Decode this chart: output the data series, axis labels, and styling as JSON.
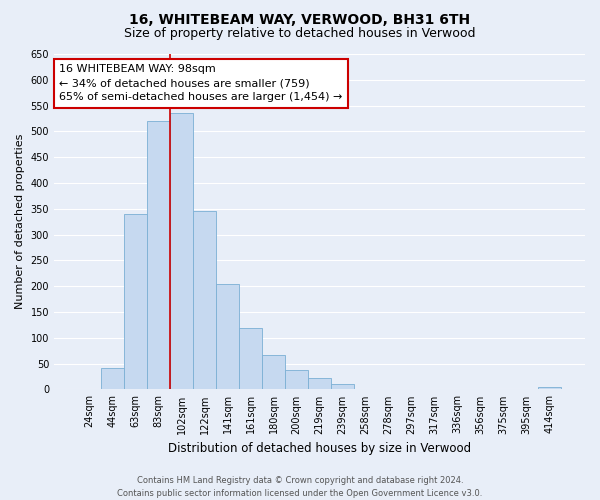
{
  "title": "16, WHITEBEAM WAY, VERWOOD, BH31 6TH",
  "subtitle": "Size of property relative to detached houses in Verwood",
  "xlabel": "Distribution of detached houses by size in Verwood",
  "ylabel": "Number of detached properties",
  "bar_labels": [
    "24sqm",
    "44sqm",
    "63sqm",
    "83sqm",
    "102sqm",
    "122sqm",
    "141sqm",
    "161sqm",
    "180sqm",
    "200sqm",
    "219sqm",
    "239sqm",
    "258sqm",
    "278sqm",
    "297sqm",
    "317sqm",
    "336sqm",
    "356sqm",
    "375sqm",
    "395sqm",
    "414sqm"
  ],
  "bar_values": [
    0,
    42,
    340,
    520,
    535,
    345,
    205,
    120,
    67,
    38,
    22,
    10,
    0,
    0,
    0,
    0,
    0,
    0,
    0,
    0,
    4
  ],
  "bar_color": "#c6d9f0",
  "bar_edge_color": "#7bafd4",
  "vline_x_index": 4,
  "vline_color": "#cc0000",
  "ylim": [
    0,
    650
  ],
  "yticks": [
    0,
    50,
    100,
    150,
    200,
    250,
    300,
    350,
    400,
    450,
    500,
    550,
    600,
    650
  ],
  "annotation_text": "16 WHITEBEAM WAY: 98sqm\n← 34% of detached houses are smaller (759)\n65% of semi-detached houses are larger (1,454) →",
  "annotation_box_facecolor": "#ffffff",
  "annotation_box_edgecolor": "#cc0000",
  "footer1": "Contains HM Land Registry data © Crown copyright and database right 2024.",
  "footer2": "Contains public sector information licensed under the Open Government Licence v3.0.",
  "bg_color": "#e8eef8",
  "grid_color": "#ffffff",
  "title_fontsize": 10,
  "subtitle_fontsize": 9,
  "ylabel_fontsize": 8,
  "xlabel_fontsize": 8.5,
  "tick_fontsize": 7,
  "annot_fontsize": 8,
  "footer_fontsize": 6
}
